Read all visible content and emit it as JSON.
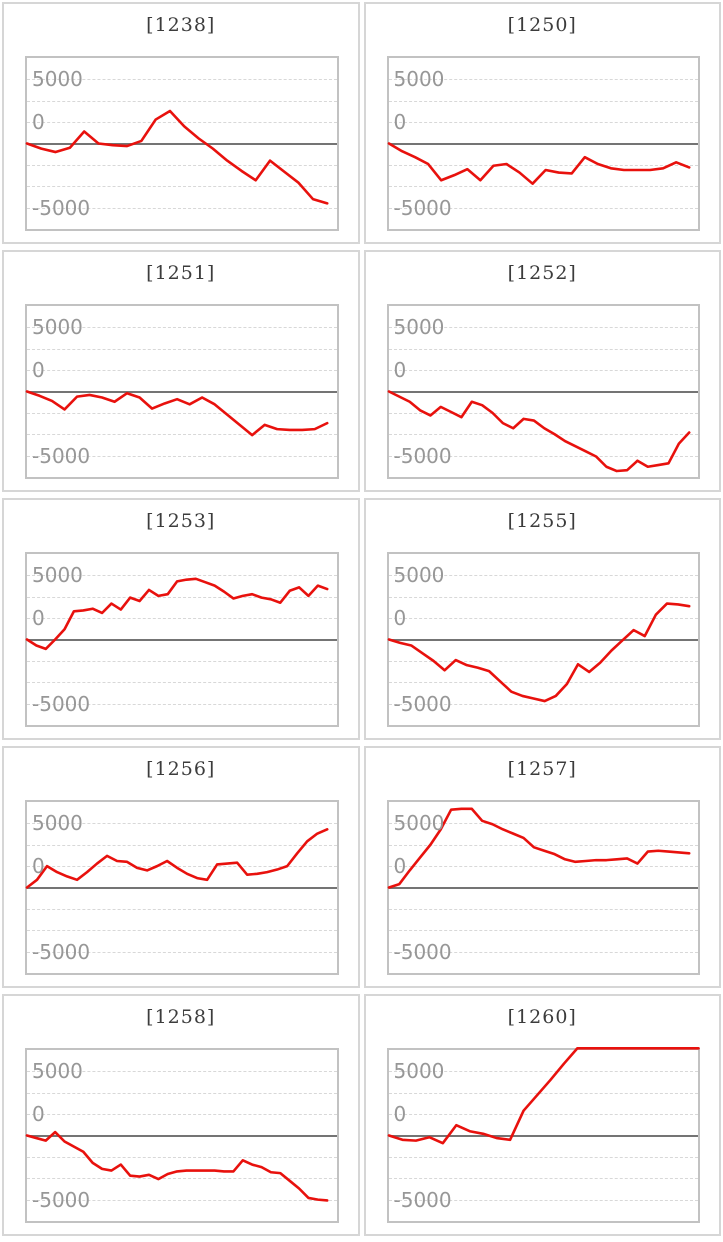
{
  "page": {
    "background": "#ffffff",
    "grid_columns": 2,
    "grid_rows": 5
  },
  "axis": {
    "tick_labels": [
      "5000",
      "0",
      "-5000"
    ],
    "tick_values": [
      5000,
      0,
      -5000
    ],
    "ylim": [
      -5000,
      5000
    ],
    "label_color": "#979797",
    "grid_color": "#d8d8d8",
    "zero_line_color": "#747474",
    "plot_border_color": "#c2c2c2",
    "panel_border_color": "#d6d6d6",
    "series_color": "#e8110d",
    "grid_interval": 1250,
    "grid_style": "dashed"
  },
  "chart_data": [
    {
      "type": "line",
      "title": "[1238]",
      "ylim": [
        -5000,
        5000
      ],
      "x_end_pct": 97,
      "values": [
        0,
        -300,
        -500,
        -250,
        700,
        0,
        -100,
        -150,
        150,
        1400,
        1900,
        1000,
        300,
        -300,
        -1000,
        -1600,
        -2150,
        -1000,
        -1650,
        -2300,
        -3250,
        -3500
      ]
    },
    {
      "type": "line",
      "title": "[1250]",
      "ylim": [
        -5000,
        5000
      ],
      "x_end_pct": 97,
      "values": [
        0,
        -450,
        -800,
        -1200,
        -2150,
        -1850,
        -1500,
        -2150,
        -1300,
        -1200,
        -1700,
        -2350,
        -1550,
        -1700,
        -1750,
        -800,
        -1200,
        -1450,
        -1550,
        -1550,
        -1550,
        -1450,
        -1100,
        -1400
      ]
    },
    {
      "type": "line",
      "title": "[1251]",
      "ylim": [
        -5000,
        5000
      ],
      "x_end_pct": 97,
      "values": [
        0,
        -250,
        -550,
        -1050,
        -300,
        -200,
        -350,
        -600,
        -100,
        -350,
        -1000,
        -700,
        -450,
        -750,
        -350,
        -750,
        -1350,
        -1950,
        -2550,
        -1950,
        -2200,
        -2250,
        -2250,
        -2200,
        -1850
      ]
    },
    {
      "type": "line",
      "title": "[1252]",
      "ylim": [
        -5000,
        5000
      ],
      "x_end_pct": 97,
      "values": [
        0,
        -300,
        -600,
        -1100,
        -1400,
        -900,
        -1200,
        -1500,
        -600,
        -800,
        -1250,
        -1850,
        -2150,
        -1600,
        -1700,
        -2150,
        -2500,
        -2900,
        -3200,
        -3500,
        -3800,
        -4400,
        -4650,
        -4600,
        -4050,
        -4400,
        -4300,
        -4200,
        -3050,
        -2400
      ]
    },
    {
      "type": "line",
      "title": "[1253]",
      "ylim": [
        -5000,
        5000
      ],
      "x_end_pct": 97,
      "values": [
        0,
        -350,
        -550,
        0,
        600,
        1650,
        1700,
        1800,
        1550,
        2100,
        1750,
        2450,
        2250,
        2900,
        2550,
        2650,
        3400,
        3500,
        3550,
        3350,
        3150,
        2800,
        2400,
        2550,
        2650,
        2450,
        2350,
        2150,
        2850,
        3050,
        2550,
        3150,
        2950
      ]
    },
    {
      "type": "line",
      "title": "[1255]",
      "ylim": [
        -5000,
        5000
      ],
      "x_end_pct": 97,
      "values": [
        0,
        -200,
        -350,
        -800,
        -1250,
        -1800,
        -1200,
        -1500,
        -1650,
        -1850,
        -2450,
        -3050,
        -3300,
        -3450,
        -3600,
        -3300,
        -2600,
        -1450,
        -1900,
        -1350,
        -650,
        -50,
        550,
        200,
        1450,
        2100,
        2050,
        1950
      ]
    },
    {
      "type": "line",
      "title": "[1256]",
      "ylim": [
        -5000,
        5000
      ],
      "x_end_pct": 97,
      "values": [
        0,
        450,
        1250,
        900,
        650,
        450,
        900,
        1400,
        1850,
        1550,
        1500,
        1150,
        1000,
        1250,
        1550,
        1150,
        800,
        550,
        450,
        1350,
        1400,
        1450,
        750,
        800,
        900,
        1050,
        1250,
        2000,
        2700,
        3150,
        3400
      ]
    },
    {
      "type": "line",
      "title": "[1257]",
      "ylim": [
        -5000,
        5000
      ],
      "x_end_pct": 97,
      "values": [
        0,
        200,
        1000,
        1750,
        2500,
        3400,
        4550,
        4600,
        4600,
        3900,
        3700,
        3400,
        3150,
        2900,
        2350,
        2150,
        1950,
        1650,
        1500,
        1550,
        1600,
        1600,
        1650,
        1700,
        1400,
        2100,
        2150,
        2100,
        2050,
        2000
      ]
    },
    {
      "type": "line",
      "title": "[1258]",
      "ylim": [
        -5000,
        5000
      ],
      "x_end_pct": 97,
      "values": [
        0,
        -150,
        -300,
        200,
        -350,
        -650,
        -950,
        -1600,
        -1950,
        -2050,
        -1700,
        -2350,
        -2400,
        -2300,
        -2550,
        -2250,
        -2100,
        -2050,
        -2050,
        -2050,
        -2050,
        -2100,
        -2100,
        -1450,
        -1700,
        -1850,
        -2150,
        -2200,
        -2650,
        -3100,
        -3650,
        -3750,
        -3800
      ]
    },
    {
      "type": "line",
      "title": "[1260]",
      "ylim": [
        -5000,
        5000
      ],
      "x_end_pct": 100,
      "values": [
        0,
        -250,
        -300,
        -100,
        -450,
        600,
        250,
        100,
        -150,
        -250,
        1450,
        2350,
        3250,
        4200,
        5100,
        5100,
        5100,
        5100,
        5100,
        5100,
        5100,
        5100,
        5100,
        5100
      ]
    }
  ]
}
